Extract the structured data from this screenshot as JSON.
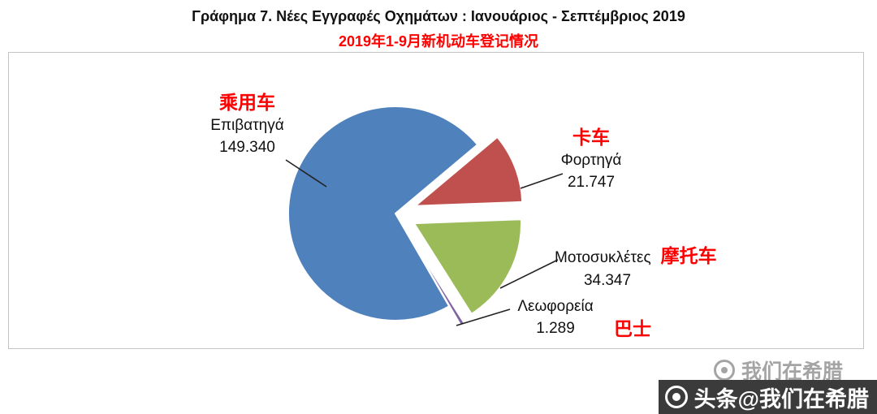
{
  "title": {
    "line1": "Γράφημα 7. Νέες Εγγραφές Οχημάτων : Ιανουάριος - Σεπτέμβριος 2019",
    "line2": "2019年1-9月新机动车登记情况"
  },
  "chart_data": {
    "type": "pie",
    "title": "Γράφημα 7. Νέες Εγγραφές Οχημάτων : Ιανουάριος - Σεπτέμβριος 2019",
    "subtitle": "2019年1-9月新机动车登记情况",
    "start_angle": 40,
    "legend": "none",
    "slices": [
      {
        "label_el": "Επιβατηγά",
        "label_zh": "乘用车",
        "value": 149340,
        "display_value": "149.340",
        "color": "#4F81BD",
        "explode": 0
      },
      {
        "label_el": "Φορτηγά",
        "label_zh": "卡车",
        "value": 21747,
        "display_value": "21.747",
        "color": "#C0504D",
        "explode": 26
      },
      {
        "label_el": "Μοτοσυκλέτες",
        "label_zh": "摩托车",
        "value": 34347,
        "display_value": "34.347",
        "color": "#9BBB59",
        "explode": 26
      },
      {
        "label_el": "Λεωφορεία",
        "label_zh": "巴士",
        "value": 1289,
        "display_value": "1.289",
        "color": "#8064A2",
        "explode": 28
      }
    ]
  },
  "watermark": {
    "faint_text": "我们在希腊",
    "banner_text": "头条@我们在希腊"
  }
}
